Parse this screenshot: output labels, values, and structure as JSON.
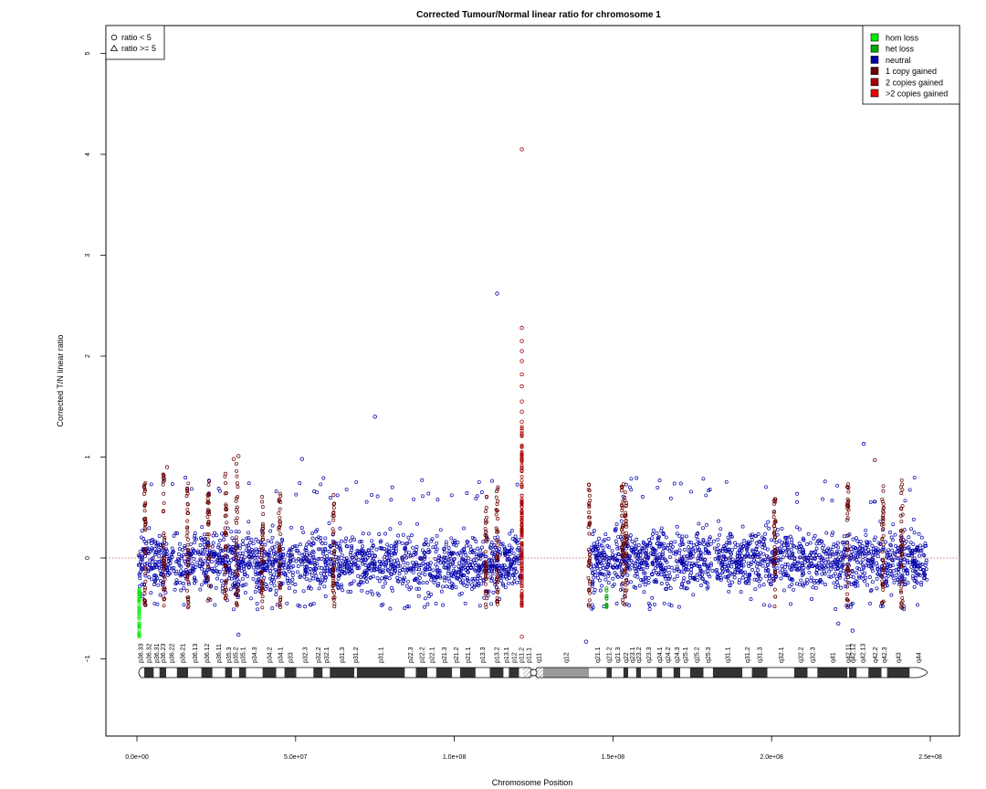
{
  "chart_data": {
    "type": "scatter",
    "title": "Corrected Tumour/Normal linear ratio for chromosome  1",
    "xlabel": "Chromosome Position",
    "ylabel": "Corrected T/N linear ratio",
    "xlim": [
      0,
      250000000
    ],
    "ylim": [
      -1.75,
      5.25
    ],
    "x_ticks": [
      {
        "value": 0,
        "label": "0.0e+00"
      },
      {
        "value": 50000000,
        "label": "5.0e+07"
      },
      {
        "value": 100000000,
        "label": "1.0e+08"
      },
      {
        "value": 150000000,
        "label": "1.5e+08"
      },
      {
        "value": 200000000,
        "label": "2.0e+08"
      },
      {
        "value": 250000000,
        "label": "2.5e+08"
      }
    ],
    "y_ticks": [
      {
        "value": -1,
        "label": "−1"
      },
      {
        "value": 0,
        "label": "0"
      },
      {
        "value": 1,
        "label": "1"
      },
      {
        "value": 2,
        "label": "2"
      },
      {
        "value": 3,
        "label": "3"
      },
      {
        "value": 4,
        "label": "4"
      },
      {
        "value": 5,
        "label": "5"
      }
    ],
    "reference_line": {
      "y": 0,
      "color": "#c0504d",
      "style": "dotted"
    },
    "shape_legend": {
      "position": "top-left",
      "entries": [
        {
          "symbol": "circle",
          "label": "ratio < 5"
        },
        {
          "symbol": "triangle",
          "label": "ratio >= 5"
        }
      ]
    },
    "color_legend": {
      "position": "top-right",
      "entries": [
        {
          "label": "hom loss",
          "color": "#00ee00"
        },
        {
          "label": "het loss",
          "color": "#00aa00"
        },
        {
          "label": "neutral",
          "color": "#0000aa"
        },
        {
          "label": "1 copy gained",
          "color": "#660000"
        },
        {
          "label": "2 copies gained",
          "color": "#aa0000"
        },
        {
          "label": ">2 copies gained",
          "color": "#ee0000"
        }
      ]
    },
    "segments": [
      {
        "start": 500000,
        "end": 121000000,
        "state": "neutral",
        "center": -0.05,
        "spread": 0.28
      },
      {
        "start": 142500000,
        "end": 249000000,
        "state": "neutral",
        "center": -0.02,
        "spread": 0.28
      }
    ],
    "outlier_points": [
      {
        "x": 113500000,
        "y": 2.62,
        "state": "neutral"
      },
      {
        "x": 75000000,
        "y": 1.4,
        "state": "neutral"
      },
      {
        "x": 229000000,
        "y": 1.13,
        "state": "neutral"
      },
      {
        "x": 52000000,
        "y": 0.98,
        "state": "neutral"
      },
      {
        "x": 121300000,
        "y": 4.05,
        "state": "2 copies gained"
      },
      {
        "x": 121300000,
        "y": 2.28,
        "state": "2 copies gained"
      },
      {
        "x": 121300000,
        "y": 2.15,
        "state": "2 copies gained"
      },
      {
        "x": 121300000,
        "y": 2.05,
        "state": "2 copies gained"
      },
      {
        "x": 121300000,
        "y": 1.95,
        "state": "2 copies gained"
      },
      {
        "x": 121300000,
        "y": 1.82,
        "state": "2 copies gained"
      },
      {
        "x": 121300000,
        "y": 1.7,
        "state": "2 copies gained"
      },
      {
        "x": 121300000,
        "y": 1.55,
        "state": "2 copies gained"
      },
      {
        "x": 121300000,
        "y": 1.45,
        "state": "2 copies gained"
      },
      {
        "x": 121300000,
        "y": 1.35,
        "state": "2 copies gained"
      },
      {
        "x": 121300000,
        "y": -0.78,
        "state": "2 copies gained"
      },
      {
        "x": 32000000,
        "y": 1.01,
        "state": "1 copy gained"
      },
      {
        "x": 30500000,
        "y": 0.98,
        "state": "1 copy gained"
      },
      {
        "x": 9500000,
        "y": 0.9,
        "state": "1 copy gained"
      },
      {
        "x": 232500000,
        "y": 0.97,
        "state": "1 copy gained"
      },
      {
        "x": 32000000,
        "y": -0.76,
        "state": "neutral"
      },
      {
        "x": 141500000,
        "y": -0.83,
        "state": "neutral"
      },
      {
        "x": 221000000,
        "y": -0.65,
        "state": "neutral"
      },
      {
        "x": 225500000,
        "y": -0.72,
        "state": "neutral"
      }
    ],
    "gain_clusters": [
      {
        "x": 2500000,
        "top": 0.75,
        "state": "1 copy gained"
      },
      {
        "x": 8500000,
        "top": 0.85,
        "state": "1 copy gained"
      },
      {
        "x": 16000000,
        "top": 0.75,
        "state": "1 copy gained"
      },
      {
        "x": 22500000,
        "top": 0.8,
        "state": "1 copy gained"
      },
      {
        "x": 28000000,
        "top": 0.85,
        "state": "1 copy gained"
      },
      {
        "x": 31500000,
        "top": 0.95,
        "state": "1 copy gained"
      },
      {
        "x": 39500000,
        "top": 0.75,
        "state": "1 copy gained"
      },
      {
        "x": 45000000,
        "top": 0.65,
        "state": "1 copy gained"
      },
      {
        "x": 62000000,
        "top": 0.65,
        "state": "1 copy gained"
      },
      {
        "x": 110000000,
        "top": 0.65,
        "state": "1 copy gained"
      },
      {
        "x": 113500000,
        "top": 0.72,
        "state": "1 copy gained"
      },
      {
        "x": 121300000,
        "top": 1.3,
        "state": "2 copies gained"
      },
      {
        "x": 142500000,
        "top": 0.8,
        "state": "1 copy gained"
      },
      {
        "x": 153000000,
        "top": 0.75,
        "state": "1 copy gained"
      },
      {
        "x": 154000000,
        "top": 0.72,
        "state": "1 copy gained"
      },
      {
        "x": 201000000,
        "top": 0.6,
        "state": "1 copy gained"
      },
      {
        "x": 224000000,
        "top": 0.75,
        "state": "1 copy gained"
      },
      {
        "x": 235000000,
        "top": 0.72,
        "state": "1 copy gained"
      },
      {
        "x": 241000000,
        "top": 0.8,
        "state": "1 copy gained"
      }
    ],
    "loss_clusters": [
      {
        "x": 700000,
        "bottom": -0.78,
        "state": "hom loss"
      },
      {
        "x": 148000000,
        "bottom": -0.5,
        "state": "het loss"
      }
    ],
    "ideogram": {
      "start": 0,
      "end": 249000000,
      "centromere": 125000000,
      "bands": [
        {
          "label": "p36.33",
          "start": 0,
          "end": 2300000,
          "stain": "gneg"
        },
        {
          "label": "p36.32",
          "start": 2300000,
          "end": 5300000,
          "stain": "gpos"
        },
        {
          "label": "p36.31",
          "start": 5300000,
          "end": 7100000,
          "stain": "gneg"
        },
        {
          "label": "p36.23",
          "start": 7100000,
          "end": 9200000,
          "stain": "gpos"
        },
        {
          "label": "p36.22",
          "start": 9200000,
          "end": 12600000,
          "stain": "gneg"
        },
        {
          "label": "p36.21",
          "start": 12600000,
          "end": 16100000,
          "stain": "gpos"
        },
        {
          "label": "p36.13",
          "start": 16100000,
          "end": 20300000,
          "stain": "gneg"
        },
        {
          "label": "p36.12",
          "start": 20300000,
          "end": 23800000,
          "stain": "gpos"
        },
        {
          "label": "p36.11",
          "start": 23800000,
          "end": 27800000,
          "stain": "gneg"
        },
        {
          "label": "p35.3",
          "start": 27800000,
          "end": 30000000,
          "stain": "gpos"
        },
        {
          "label": "p35.2",
          "start": 30000000,
          "end": 32200000,
          "stain": "gneg"
        },
        {
          "label": "p35.1",
          "start": 32200000,
          "end": 34400000,
          "stain": "gpos"
        },
        {
          "label": "p34.3",
          "start": 34400000,
          "end": 39600000,
          "stain": "gneg"
        },
        {
          "label": "p34.2",
          "start": 39600000,
          "end": 43900000,
          "stain": "gpos"
        },
        {
          "label": "p34.1",
          "start": 43900000,
          "end": 46500000,
          "stain": "gneg"
        },
        {
          "label": "p33",
          "start": 46500000,
          "end": 50200000,
          "stain": "gpos"
        },
        {
          "label": "p32.3",
          "start": 50200000,
          "end": 55600000,
          "stain": "gneg"
        },
        {
          "label": "p32.2",
          "start": 55600000,
          "end": 58500000,
          "stain": "gpos"
        },
        {
          "label": "p32.1",
          "start": 58500000,
          "end": 60800000,
          "stain": "gneg"
        },
        {
          "label": "p31.3",
          "start": 60800000,
          "end": 68500000,
          "stain": "gpos"
        },
        {
          "label": "p31.2",
          "start": 68500000,
          "end": 69300000,
          "stain": "gneg"
        },
        {
          "label": "p31.1",
          "start": 69300000,
          "end": 84400000,
          "stain": "gpos"
        },
        {
          "label": "p22.3",
          "start": 84400000,
          "end": 87900000,
          "stain": "gneg"
        },
        {
          "label": "p22.2",
          "start": 87900000,
          "end": 91500000,
          "stain": "gpos"
        },
        {
          "label": "p22.1",
          "start": 91500000,
          "end": 94300000,
          "stain": "gneg"
        },
        {
          "label": "p21.3",
          "start": 94300000,
          "end": 99300000,
          "stain": "gpos"
        },
        {
          "label": "p21.2",
          "start": 99300000,
          "end": 101800000,
          "stain": "gneg"
        },
        {
          "label": "p21.1",
          "start": 101800000,
          "end": 106700000,
          "stain": "gpos"
        },
        {
          "label": "p13.3",
          "start": 106700000,
          "end": 111200000,
          "stain": "gneg"
        },
        {
          "label": "p13.2",
          "start": 111200000,
          "end": 115500000,
          "stain": "gpos"
        },
        {
          "label": "p13.1",
          "start": 115500000,
          "end": 117200000,
          "stain": "gneg"
        },
        {
          "label": "p12",
          "start": 117200000,
          "end": 120400000,
          "stain": "gpos"
        },
        {
          "label": "p11.2",
          "start": 120400000,
          "end": 121700000,
          "stain": "gneg"
        },
        {
          "label": "p11.1",
          "start": 121700000,
          "end": 125100000,
          "stain": "acen"
        },
        {
          "label": "q11",
          "start": 125100000,
          "end": 128000000,
          "stain": "acen"
        },
        {
          "label": "q12",
          "start": 128000000,
          "end": 142400000,
          "stain": "gvar"
        },
        {
          "label": "q21.1",
          "start": 142400000,
          "end": 148000000,
          "stain": "gneg"
        },
        {
          "label": "q21.2",
          "start": 148000000,
          "end": 149600000,
          "stain": "gpos"
        },
        {
          "label": "q21.3",
          "start": 149600000,
          "end": 153300000,
          "stain": "gneg"
        },
        {
          "label": "q22",
          "start": 153300000,
          "end": 154800000,
          "stain": "gpos"
        },
        {
          "label": "q23.1",
          "start": 154800000,
          "end": 157300000,
          "stain": "gneg"
        },
        {
          "label": "q23.2",
          "start": 157300000,
          "end": 158800000,
          "stain": "gpos"
        },
        {
          "label": "q23.3",
          "start": 158800000,
          "end": 163800000,
          "stain": "gneg"
        },
        {
          "label": "q24.1",
          "start": 163800000,
          "end": 165500000,
          "stain": "gpos"
        },
        {
          "label": "q24.2",
          "start": 165500000,
          "end": 169100000,
          "stain": "gneg"
        },
        {
          "label": "q24.3",
          "start": 169100000,
          "end": 171200000,
          "stain": "gpos"
        },
        {
          "label": "q25.1",
          "start": 171200000,
          "end": 174300000,
          "stain": "gneg"
        },
        {
          "label": "q25.2",
          "start": 174300000,
          "end": 178500000,
          "stain": "gpos"
        },
        {
          "label": "q25.3",
          "start": 178500000,
          "end": 181500000,
          "stain": "gneg"
        },
        {
          "label": "q31.1",
          "start": 181500000,
          "end": 190800000,
          "stain": "gpos"
        },
        {
          "label": "q31.2",
          "start": 190800000,
          "end": 193800000,
          "stain": "gneg"
        },
        {
          "label": "q31.3",
          "start": 193800000,
          "end": 198700000,
          "stain": "gpos"
        },
        {
          "label": "q32.1",
          "start": 198700000,
          "end": 207100000,
          "stain": "gneg"
        },
        {
          "label": "q32.2",
          "start": 207100000,
          "end": 211300000,
          "stain": "gpos"
        },
        {
          "label": "q32.3",
          "start": 211300000,
          "end": 214400000,
          "stain": "gneg"
        },
        {
          "label": "q41",
          "start": 214400000,
          "end": 223900000,
          "stain": "gpos"
        },
        {
          "label": "q42.11",
          "start": 223900000,
          "end": 224400000,
          "stain": "gneg"
        },
        {
          "label": "q42.12",
          "start": 224400000,
          "end": 226800000,
          "stain": "gpos"
        },
        {
          "label": "q42.13",
          "start": 226800000,
          "end": 230500000,
          "stain": "gneg"
        },
        {
          "label": "q42.2",
          "start": 230500000,
          "end": 234600000,
          "stain": "gpos"
        },
        {
          "label": "q42.3",
          "start": 234600000,
          "end": 236400000,
          "stain": "gneg"
        },
        {
          "label": "q43",
          "start": 236400000,
          "end": 243500000,
          "stain": "gpos"
        },
        {
          "label": "q44",
          "start": 243500000,
          "end": 249000000,
          "stain": "gneg"
        }
      ]
    }
  }
}
